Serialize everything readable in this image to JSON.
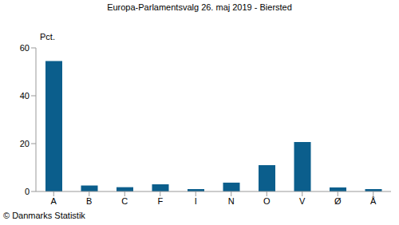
{
  "chart_data": {
    "type": "bar",
    "title": "Europa-Parlamentsvalg 26. maj 2019 - Biersted",
    "ylabel": "Pct.",
    "annotations": [
      "© Danmarks Statistik"
    ],
    "categories": [
      "A",
      "B",
      "C",
      "F",
      "I",
      "N",
      "O",
      "V",
      "Ø",
      "Å"
    ],
    "values": [
      54.5,
      2.5,
      1.8,
      3.0,
      1.0,
      3.7,
      11.0,
      20.7,
      1.7,
      1.0
    ],
    "color": "#0b5e8c",
    "ylim": [
      0,
      60
    ],
    "yticks": [
      0,
      20,
      40,
      60
    ],
    "grid": false
  }
}
